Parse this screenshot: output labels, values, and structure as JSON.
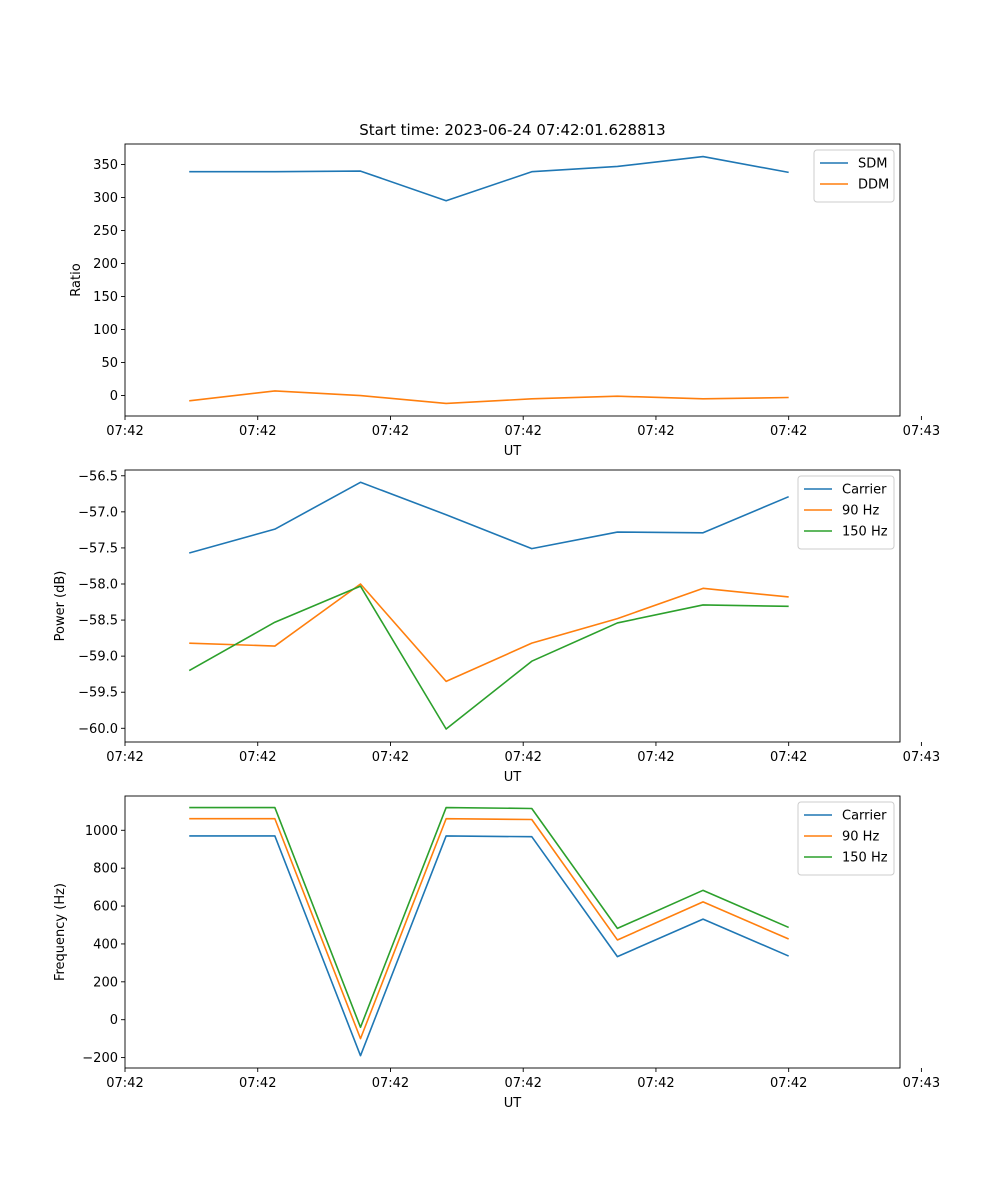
{
  "title": "Start time: 2023-06-24 07:42:01.628813",
  "colors": {
    "blue": "#1f77b4",
    "orange": "#ff7f0e",
    "green": "#2ca02c"
  },
  "chart_data": [
    {
      "type": "line",
      "title": "Start time: 2023-06-24 07:42:01.628813",
      "xlabel": "UT",
      "ylabel": "Ratio",
      "x": [
        0,
        1,
        2,
        3,
        4,
        5,
        6,
        7
      ],
      "xlim": [
        -0.75,
        8.3
      ],
      "xticks": [
        -0.75,
        0.8,
        2.35,
        3.9,
        5.45,
        7.0,
        8.55
      ],
      "xtick_labels": [
        "07:42",
        "07:42",
        "07:42",
        "07:42",
        "07:42",
        "07:42",
        "07:43"
      ],
      "ylim": [
        -31,
        381
      ],
      "yticks": [
        0,
        50,
        100,
        150,
        200,
        250,
        300,
        350
      ],
      "ytick_labels": [
        "0",
        "50",
        "100",
        "150",
        "200",
        "250",
        "300",
        "350"
      ],
      "legend_position": "top-right",
      "series": [
        {
          "name": "SDM",
          "color": "#1f77b4",
          "values": [
            339,
            339,
            340,
            295,
            339,
            347,
            362,
            338
          ]
        },
        {
          "name": "DDM",
          "color": "#ff7f0e",
          "values": [
            -8,
            7,
            0,
            -12,
            -5,
            -1,
            -5,
            -3
          ]
        }
      ]
    },
    {
      "type": "line",
      "xlabel": "UT",
      "ylabel": "Power (dB)",
      "x": [
        0,
        1,
        2,
        3,
        4,
        5,
        6,
        7
      ],
      "xlim": [
        -0.75,
        8.3
      ],
      "xticks": [
        -0.75,
        0.8,
        2.35,
        3.9,
        5.45,
        7.0,
        8.55
      ],
      "xtick_labels": [
        "07:42",
        "07:42",
        "07:42",
        "07:42",
        "07:42",
        "07:42",
        "07:43"
      ],
      "ylim": [
        -60.19,
        -56.42
      ],
      "yticks": [
        -60.0,
        -59.5,
        -59.0,
        -58.5,
        -58.0,
        -57.5,
        -57.0,
        -56.5
      ],
      "ytick_labels": [
        "−60.0",
        "−59.5",
        "−59.0",
        "−58.5",
        "−58.0",
        "−57.5",
        "−57.0",
        "−56.5"
      ],
      "legend_position": "top-right",
      "series": [
        {
          "name": "Carrier",
          "color": "#1f77b4",
          "values": [
            -57.57,
            -57.24,
            -56.59,
            -57.04,
            -57.51,
            -57.28,
            -57.29,
            -56.79
          ]
        },
        {
          "name": "90 Hz",
          "color": "#ff7f0e",
          "values": [
            -58.82,
            -58.86,
            -58.0,
            -59.35,
            -58.82,
            -58.48,
            -58.06,
            -58.18
          ]
        },
        {
          "name": "150 Hz",
          "color": "#2ca02c",
          "values": [
            -59.2,
            -58.53,
            -58.03,
            -60.01,
            -59.07,
            -58.54,
            -58.29,
            -58.31
          ]
        }
      ]
    },
    {
      "type": "line",
      "xlabel": "UT",
      "ylabel": "Frequency (Hz)",
      "x": [
        0,
        1,
        2,
        3,
        4,
        5,
        6,
        7
      ],
      "xlim": [
        -0.75,
        8.3
      ],
      "xticks": [
        -0.75,
        0.8,
        2.35,
        3.9,
        5.45,
        7.0,
        8.55
      ],
      "xtick_labels": [
        "07:42",
        "07:42",
        "07:42",
        "07:42",
        "07:42",
        "07:42",
        "07:43"
      ],
      "ylim": [
        -255,
        1181
      ],
      "yticks": [
        -200,
        0,
        200,
        400,
        600,
        800,
        1000
      ],
      "ytick_labels": [
        "−200",
        "0",
        "200",
        "400",
        "600",
        "800",
        "1000"
      ],
      "legend_position": "top-right",
      "series": [
        {
          "name": "Carrier",
          "color": "#1f77b4",
          "values": [
            970,
            970,
            -190,
            970,
            966,
            333,
            531,
            336
          ]
        },
        {
          "name": "90 Hz",
          "color": "#ff7f0e",
          "values": [
            1061,
            1061,
            -100,
            1061,
            1057,
            421,
            622,
            426
          ]
        },
        {
          "name": "150 Hz",
          "color": "#2ca02c",
          "values": [
            1120,
            1120,
            -40,
            1120,
            1115,
            482,
            683,
            487
          ]
        }
      ]
    }
  ]
}
